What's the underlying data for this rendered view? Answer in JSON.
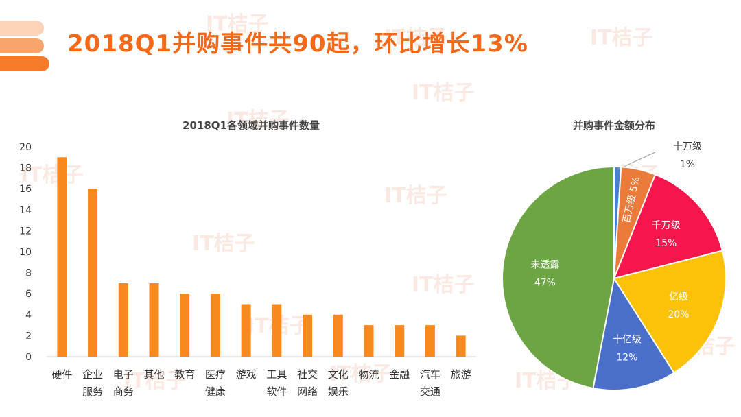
{
  "header": {
    "title": "2018Q1并购事件共90起，环比增长13%"
  },
  "watermark": {
    "text": "IT桔子"
  },
  "chart_data": [
    {
      "type": "bar",
      "title": "2018Q1各领域并购事件数量",
      "categories": [
        [
          "硬件"
        ],
        [
          "企业",
          "服务"
        ],
        [
          "电子",
          "商务"
        ],
        [
          "其他"
        ],
        [
          "教育"
        ],
        [
          "医疗",
          "健康"
        ],
        [
          "游戏"
        ],
        [
          "工具",
          "软件"
        ],
        [
          "社交",
          "网络"
        ],
        [
          "文化",
          "娱乐"
        ],
        [
          "物流"
        ],
        [
          "金融"
        ],
        [
          "汽车",
          "交通"
        ],
        [
          "旅游"
        ]
      ],
      "values": [
        19,
        16,
        7,
        7,
        6,
        6,
        5,
        5,
        4,
        4,
        3,
        3,
        3,
        2
      ],
      "ylim": [
        0,
        20
      ],
      "yticks": [
        0,
        2,
        4,
        6,
        8,
        10,
        12,
        14,
        16,
        18,
        20
      ],
      "color": "#f7891f",
      "grid": false
    },
    {
      "type": "pie",
      "title": "并购事件金额分布",
      "slices": [
        {
          "label": "十万级",
          "value": 1,
          "text": "1%",
          "color": "#4a7ecf"
        },
        {
          "label": "百万级",
          "value": 5,
          "text": "5%",
          "color": "#ea7b3a"
        },
        {
          "label": "千万级",
          "value": 15,
          "text": "15%",
          "color": "#f5164d"
        },
        {
          "label": "亿级",
          "value": 20,
          "text": "20%",
          "color": "#fcc20a"
        },
        {
          "label": "十亿级",
          "value": 12,
          "text": "12%",
          "color": "#4a6fc8"
        },
        {
          "label": "未透露",
          "value": 47,
          "text": "47%",
          "color": "#6da544"
        }
      ]
    }
  ]
}
